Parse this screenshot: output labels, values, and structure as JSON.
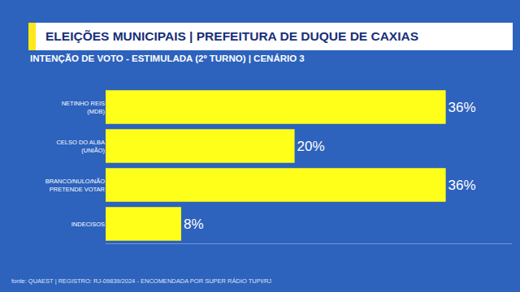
{
  "chart_data": {
    "type": "bar",
    "title": "ELEIÇÕES MUNICIPAIS | PREFEITURA DE DUQUE DE CAXIAS",
    "subtitle": "INTENÇÃO DE VOTO - ESTIMULADA (2º TURNO) | CENÁRIO 3",
    "categories": [
      "NETINHO REIS\n(MDB)",
      "CELSO DO ALBA\n(UNIÃO)",
      "BRANCO/NULO/NÃO\nPRETENDE VOTAR",
      "INDECISOS"
    ],
    "values": [
      36,
      20,
      36,
      8
    ],
    "value_labels": [
      "36%",
      "20%",
      "36%",
      "8%"
    ],
    "color": "#ffff1a",
    "orientation": "horizontal",
    "data_labels": true,
    "xlim": [
      0,
      43
    ],
    "xticks": [],
    "tick_labels": "y",
    "grid": false,
    "annotations": [
      "fonte: QUAEST | REGISTRO: RJ-09839/2024 - ENCOMENDADA POR SUPER RÁDIO TUPI/RJ"
    ]
  }
}
